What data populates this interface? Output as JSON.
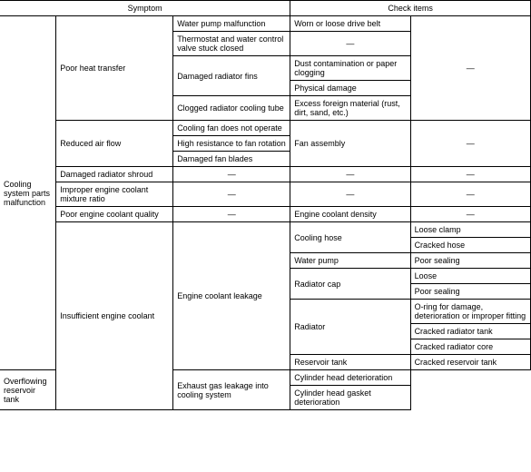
{
  "headers": {
    "symptom": "Symptom",
    "check_items": "Check items"
  },
  "dash": "—",
  "main_category": "Cooling system parts malfunction",
  "rows": {
    "poor_heat": {
      "label": "Poor heat transfer",
      "water_pump": "Water pump malfunction",
      "water_pump_check": "Worn or loose drive belt",
      "thermostat": "Thermostat and water control valve stuck closed",
      "damaged_fins": "Damaged radiator fins",
      "dust": "Dust contamination or paper clogging",
      "physical": "Physical damage",
      "clogged_tube": "Clogged radiator cooling tube",
      "excess": "Excess foreign material (rust, dirt, sand, etc.)"
    },
    "reduced_air": {
      "label": "Reduced air flow",
      "fan_no_op": "Cooling fan does not operate",
      "high_resist": "High resistance to fan rotation",
      "damaged_blades": "Damaged fan blades",
      "fan_assembly": "Fan assembly"
    },
    "damaged_shroud": "Damaged radiator shroud",
    "improper_mix": "Improper engine coolant mixture ratio",
    "poor_quality": "Poor engine coolant quality",
    "poor_quality_check": "Engine coolant density",
    "insufficient": {
      "label": "Insufficient engine coolant",
      "leakage": "Engine coolant leakage",
      "cooling_hose": "Cooling hose",
      "loose_clamp": "Loose clamp",
      "cracked_hose": "Cracked hose",
      "water_pump": "Water pump",
      "poor_sealing1": "Poor sealing",
      "radiator_cap": "Radiator cap",
      "loose": "Loose",
      "poor_sealing2": "Poor sealing",
      "radiator": "Radiator",
      "oring": "O-ring for damage, deterioration or improper fitting",
      "cracked_tank": "Cracked radiator tank",
      "cracked_core": "Cracked radiator core",
      "reservoir": "Reservoir tank",
      "cracked_reservoir": "Cracked reservoir tank",
      "overflow": "Overflowing reservoir tank",
      "exhaust_gas": "Exhaust gas leakage into cooling system",
      "cyl_head": "Cylinder head deterioration",
      "cyl_gasket": "Cylinder head gasket deterioration"
    }
  }
}
